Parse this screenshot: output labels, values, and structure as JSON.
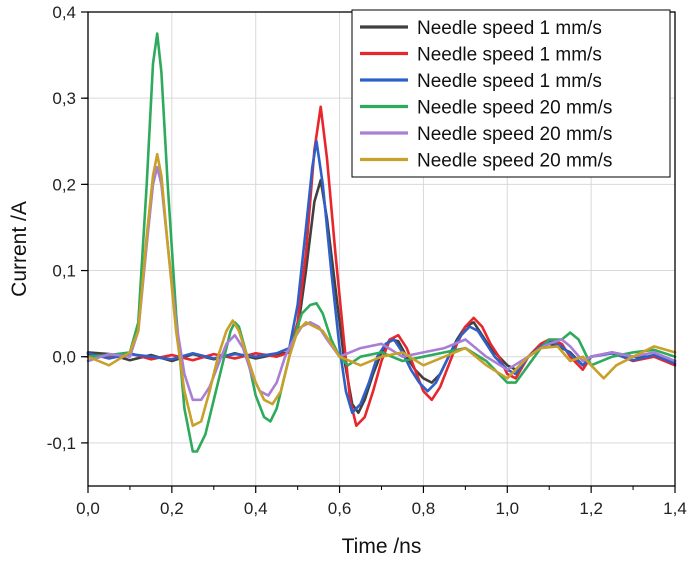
{
  "chart_data": {
    "type": "line",
    "xlabel": "Time /ns",
    "ylabel": "Current /A",
    "xlim": [
      0,
      1.4
    ],
    "ylim": [
      -0.15,
      0.4
    ],
    "grid": true,
    "legend_position": "top-right",
    "x_ticks": [
      "0,0",
      "0,2",
      "0,4",
      "0,6",
      "0,8",
      "1,0",
      "1,2",
      "1,4"
    ],
    "y_ticks": [
      "-0,1",
      "0,0",
      "0,1",
      "0,2",
      "0,3",
      "0,4"
    ],
    "series": [
      {
        "name": "Needle speed 1 mm/s",
        "color": "#404040",
        "points": [
          [
            0,
            0.005
          ],
          [
            0.05,
            0.003
          ],
          [
            0.1,
            -0.004
          ],
          [
            0.15,
            0.002
          ],
          [
            0.2,
            -0.005
          ],
          [
            0.25,
            0.003
          ],
          [
            0.3,
            -0.003
          ],
          [
            0.35,
            0.004
          ],
          [
            0.4,
            -0.002
          ],
          [
            0.45,
            0.003
          ],
          [
            0.48,
            0.005
          ],
          [
            0.5,
            0.03
          ],
          [
            0.52,
            0.1
          ],
          [
            0.54,
            0.18
          ],
          [
            0.555,
            0.205
          ],
          [
            0.57,
            0.16
          ],
          [
            0.59,
            0.08
          ],
          [
            0.61,
            0.0
          ],
          [
            0.63,
            -0.055
          ],
          [
            0.645,
            -0.065
          ],
          [
            0.66,
            -0.05
          ],
          [
            0.68,
            -0.02
          ],
          [
            0.7,
            0.005
          ],
          [
            0.72,
            0.02
          ],
          [
            0.74,
            0.018
          ],
          [
            0.76,
            0.0
          ],
          [
            0.78,
            -0.015
          ],
          [
            0.8,
            -0.025
          ],
          [
            0.82,
            -0.03
          ],
          [
            0.84,
            -0.02
          ],
          [
            0.86,
            0.0
          ],
          [
            0.88,
            0.02
          ],
          [
            0.9,
            0.035
          ],
          [
            0.92,
            0.04
          ],
          [
            0.94,
            0.025
          ],
          [
            0.96,
            0.01
          ],
          [
            0.98,
            0.0
          ],
          [
            1.0,
            -0.01
          ],
          [
            1.02,
            -0.015
          ],
          [
            1.05,
            0.0
          ],
          [
            1.08,
            0.01
          ],
          [
            1.1,
            0.015
          ],
          [
            1.13,
            0.01
          ],
          [
            1.15,
            0.005
          ],
          [
            1.18,
            -0.01
          ],
          [
            1.2,
            0.0
          ],
          [
            1.25,
            0.005
          ],
          [
            1.3,
            0.0
          ],
          [
            1.35,
            0.0
          ],
          [
            1.4,
            -0.005
          ]
        ]
      },
      {
        "name": "Needle speed 1 mm/s",
        "color": "#e8262c",
        "points": [
          [
            0,
            0.003
          ],
          [
            0.05,
            0.0
          ],
          [
            0.1,
            0.004
          ],
          [
            0.15,
            -0.003
          ],
          [
            0.2,
            0.002
          ],
          [
            0.25,
            -0.004
          ],
          [
            0.3,
            0.003
          ],
          [
            0.35,
            -0.002
          ],
          [
            0.4,
            0.004
          ],
          [
            0.45,
            0.0
          ],
          [
            0.48,
            0.005
          ],
          [
            0.5,
            0.04
          ],
          [
            0.52,
            0.12
          ],
          [
            0.54,
            0.24
          ],
          [
            0.555,
            0.29
          ],
          [
            0.57,
            0.23
          ],
          [
            0.59,
            0.12
          ],
          [
            0.61,
            0.02
          ],
          [
            0.625,
            -0.05
          ],
          [
            0.64,
            -0.08
          ],
          [
            0.66,
            -0.07
          ],
          [
            0.68,
            -0.04
          ],
          [
            0.7,
            -0.005
          ],
          [
            0.72,
            0.02
          ],
          [
            0.74,
            0.025
          ],
          [
            0.76,
            0.01
          ],
          [
            0.78,
            -0.015
          ],
          [
            0.8,
            -0.04
          ],
          [
            0.82,
            -0.05
          ],
          [
            0.84,
            -0.035
          ],
          [
            0.86,
            -0.01
          ],
          [
            0.88,
            0.015
          ],
          [
            0.9,
            0.035
          ],
          [
            0.92,
            0.045
          ],
          [
            0.94,
            0.035
          ],
          [
            0.96,
            0.015
          ],
          [
            0.98,
            0.0
          ],
          [
            1.0,
            -0.02
          ],
          [
            1.02,
            -0.025
          ],
          [
            1.05,
            0.0
          ],
          [
            1.08,
            0.015
          ],
          [
            1.1,
            0.02
          ],
          [
            1.13,
            0.015
          ],
          [
            1.15,
            0.0
          ],
          [
            1.18,
            -0.015
          ],
          [
            1.2,
            0.0
          ],
          [
            1.25,
            0.005
          ],
          [
            1.3,
            -0.005
          ],
          [
            1.35,
            0.0
          ],
          [
            1.4,
            -0.01
          ]
        ]
      },
      {
        "name": "Needle speed 1 mm/s",
        "color": "#2f60c8",
        "points": [
          [
            0,
            0.004
          ],
          [
            0.05,
            -0.002
          ],
          [
            0.1,
            0.003
          ],
          [
            0.15,
            0.0
          ],
          [
            0.2,
            -0.003
          ],
          [
            0.25,
            0.004
          ],
          [
            0.3,
            -0.002
          ],
          [
            0.35,
            0.003
          ],
          [
            0.4,
            0.0
          ],
          [
            0.45,
            0.004
          ],
          [
            0.48,
            0.01
          ],
          [
            0.5,
            0.06
          ],
          [
            0.52,
            0.15
          ],
          [
            0.535,
            0.22
          ],
          [
            0.545,
            0.25
          ],
          [
            0.56,
            0.2
          ],
          [
            0.58,
            0.1
          ],
          [
            0.6,
            0.01
          ],
          [
            0.615,
            -0.04
          ],
          [
            0.63,
            -0.065
          ],
          [
            0.65,
            -0.055
          ],
          [
            0.67,
            -0.03
          ],
          [
            0.69,
            0.0
          ],
          [
            0.71,
            0.015
          ],
          [
            0.73,
            0.02
          ],
          [
            0.75,
            0.005
          ],
          [
            0.77,
            -0.015
          ],
          [
            0.79,
            -0.03
          ],
          [
            0.81,
            -0.04
          ],
          [
            0.83,
            -0.03
          ],
          [
            0.85,
            -0.01
          ],
          [
            0.87,
            0.01
          ],
          [
            0.89,
            0.025
          ],
          [
            0.91,
            0.035
          ],
          [
            0.93,
            0.03
          ],
          [
            0.95,
            0.015
          ],
          [
            0.97,
            0.0
          ],
          [
            1.0,
            -0.015
          ],
          [
            1.02,
            -0.02
          ],
          [
            1.05,
            0.0
          ],
          [
            1.08,
            0.012
          ],
          [
            1.1,
            0.018
          ],
          [
            1.13,
            0.012
          ],
          [
            1.15,
            0.003
          ],
          [
            1.18,
            -0.01
          ],
          [
            1.2,
            0.0
          ],
          [
            1.25,
            0.004
          ],
          [
            1.3,
            -0.004
          ],
          [
            1.35,
            0.002
          ],
          [
            1.4,
            -0.008
          ]
        ]
      },
      {
        "name": "Needle speed 20 mm/s",
        "color": "#2eaa5c",
        "points": [
          [
            0,
            0.0
          ],
          [
            0.05,
            0.002
          ],
          [
            0.1,
            0.005
          ],
          [
            0.12,
            0.04
          ],
          [
            0.14,
            0.2
          ],
          [
            0.155,
            0.34
          ],
          [
            0.165,
            0.375
          ],
          [
            0.175,
            0.33
          ],
          [
            0.19,
            0.2
          ],
          [
            0.21,
            0.05
          ],
          [
            0.23,
            -0.06
          ],
          [
            0.25,
            -0.11
          ],
          [
            0.26,
            -0.11
          ],
          [
            0.28,
            -0.09
          ],
          [
            0.3,
            -0.05
          ],
          [
            0.32,
            -0.01
          ],
          [
            0.34,
            0.03
          ],
          [
            0.35,
            0.04
          ],
          [
            0.36,
            0.035
          ],
          [
            0.38,
            0.0
          ],
          [
            0.4,
            -0.045
          ],
          [
            0.42,
            -0.07
          ],
          [
            0.435,
            -0.075
          ],
          [
            0.45,
            -0.06
          ],
          [
            0.47,
            -0.02
          ],
          [
            0.49,
            0.02
          ],
          [
            0.51,
            0.05
          ],
          [
            0.53,
            0.06
          ],
          [
            0.545,
            0.062
          ],
          [
            0.56,
            0.05
          ],
          [
            0.58,
            0.02
          ],
          [
            0.6,
            0.0
          ],
          [
            0.62,
            -0.01
          ],
          [
            0.65,
            0.0
          ],
          [
            0.7,
            0.005
          ],
          [
            0.75,
            -0.005
          ],
          [
            0.8,
            0.0
          ],
          [
            0.85,
            0.005
          ],
          [
            0.9,
            0.01
          ],
          [
            0.95,
            -0.005
          ],
          [
            1.0,
            -0.03
          ],
          [
            1.02,
            -0.03
          ],
          [
            1.05,
            -0.01
          ],
          [
            1.08,
            0.01
          ],
          [
            1.1,
            0.02
          ],
          [
            1.13,
            0.02
          ],
          [
            1.15,
            0.028
          ],
          [
            1.17,
            0.02
          ],
          [
            1.2,
            -0.01
          ],
          [
            1.25,
            0.0
          ],
          [
            1.3,
            0.005
          ],
          [
            1.35,
            0.008
          ],
          [
            1.4,
            0.0
          ]
        ]
      },
      {
        "name": "Needle speed 20 mm/s",
        "color": "#a97fd6",
        "points": [
          [
            0,
            -0.005
          ],
          [
            0.05,
            0.003
          ],
          [
            0.1,
            0.0
          ],
          [
            0.12,
            0.03
          ],
          [
            0.14,
            0.13
          ],
          [
            0.155,
            0.2
          ],
          [
            0.165,
            0.22
          ],
          [
            0.175,
            0.2
          ],
          [
            0.19,
            0.13
          ],
          [
            0.21,
            0.04
          ],
          [
            0.23,
            -0.02
          ],
          [
            0.25,
            -0.05
          ],
          [
            0.27,
            -0.05
          ],
          [
            0.29,
            -0.035
          ],
          [
            0.31,
            -0.01
          ],
          [
            0.33,
            0.015
          ],
          [
            0.35,
            0.025
          ],
          [
            0.37,
            0.01
          ],
          [
            0.39,
            -0.02
          ],
          [
            0.41,
            -0.04
          ],
          [
            0.43,
            -0.045
          ],
          [
            0.45,
            -0.03
          ],
          [
            0.47,
            0.0
          ],
          [
            0.49,
            0.02
          ],
          [
            0.51,
            0.035
          ],
          [
            0.53,
            0.04
          ],
          [
            0.55,
            0.035
          ],
          [
            0.57,
            0.02
          ],
          [
            0.6,
            0.0
          ],
          [
            0.65,
            0.01
          ],
          [
            0.7,
            0.015
          ],
          [
            0.75,
            0.0
          ],
          [
            0.8,
            0.005
          ],
          [
            0.85,
            0.01
          ],
          [
            0.9,
            0.02
          ],
          [
            0.95,
            0.0
          ],
          [
            1.0,
            -0.015
          ],
          [
            1.05,
            0.0
          ],
          [
            1.08,
            0.01
          ],
          [
            1.1,
            0.015
          ],
          [
            1.13,
            0.02
          ],
          [
            1.15,
            0.012
          ],
          [
            1.18,
            -0.005
          ],
          [
            1.2,
            0.0
          ],
          [
            1.25,
            0.005
          ],
          [
            1.3,
            0.0
          ],
          [
            1.35,
            0.005
          ],
          [
            1.4,
            -0.005
          ]
        ]
      },
      {
        "name": "Needle speed 20 mm/s",
        "color": "#c8a02a",
        "points": [
          [
            0,
            0.0
          ],
          [
            0.05,
            -0.01
          ],
          [
            0.1,
            0.005
          ],
          [
            0.12,
            0.03
          ],
          [
            0.14,
            0.14
          ],
          [
            0.155,
            0.21
          ],
          [
            0.165,
            0.235
          ],
          [
            0.175,
            0.21
          ],
          [
            0.19,
            0.13
          ],
          [
            0.21,
            0.03
          ],
          [
            0.23,
            -0.04
          ],
          [
            0.25,
            -0.08
          ],
          [
            0.27,
            -0.075
          ],
          [
            0.29,
            -0.04
          ],
          [
            0.31,
            0.0
          ],
          [
            0.33,
            0.03
          ],
          [
            0.345,
            0.042
          ],
          [
            0.36,
            0.03
          ],
          [
            0.38,
            0.0
          ],
          [
            0.4,
            -0.03
          ],
          [
            0.42,
            -0.05
          ],
          [
            0.44,
            -0.055
          ],
          [
            0.46,
            -0.04
          ],
          [
            0.48,
            0.0
          ],
          [
            0.5,
            0.03
          ],
          [
            0.52,
            0.04
          ],
          [
            0.54,
            0.035
          ],
          [
            0.56,
            0.03
          ],
          [
            0.58,
            0.015
          ],
          [
            0.6,
            0.0
          ],
          [
            0.65,
            -0.01
          ],
          [
            0.7,
            0.0
          ],
          [
            0.75,
            0.005
          ],
          [
            0.8,
            -0.01
          ],
          [
            0.85,
            0.0
          ],
          [
            0.9,
            0.01
          ],
          [
            0.95,
            -0.01
          ],
          [
            1.0,
            -0.025
          ],
          [
            1.05,
            0.0
          ],
          [
            1.08,
            0.01
          ],
          [
            1.12,
            0.012
          ],
          [
            1.15,
            -0.005
          ],
          [
            1.18,
            0.0
          ],
          [
            1.2,
            -0.01
          ],
          [
            1.23,
            -0.025
          ],
          [
            1.26,
            -0.01
          ],
          [
            1.3,
            0.0
          ],
          [
            1.35,
            0.012
          ],
          [
            1.4,
            0.005
          ]
        ]
      }
    ]
  }
}
